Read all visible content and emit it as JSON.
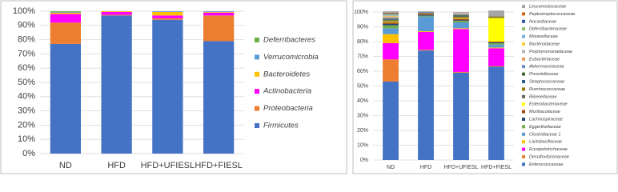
{
  "chart_data": [
    {
      "type": "stacked_bar",
      "categories": [
        "ND",
        "HFD",
        "HFD+UFIESL",
        "HFD+FIESL"
      ],
      "series": [
        {
          "name": "Firmicutes",
          "color": "#4472c4",
          "values": [
            77,
            97,
            94,
            79
          ]
        },
        {
          "name": "Proteobacteria",
          "color": "#ed7d31",
          "values": [
            15,
            0.5,
            1,
            18
          ]
        },
        {
          "name": "Actinobacteria",
          "color": "#ff00ff",
          "values": [
            6,
            2,
            2,
            2
          ]
        },
        {
          "name": "Bacteroidetes",
          "color": "#ffc000",
          "values": [
            1,
            0.5,
            2.5,
            0.5
          ]
        },
        {
          "name": "Verrucomicrobia",
          "color": "#5b9bd5",
          "values": [
            0.5,
            0,
            0.5,
            0.5
          ]
        },
        {
          "name": "Deferribacteres",
          "color": "#70ad47",
          "values": [
            0.5,
            0,
            0,
            0
          ]
        }
      ],
      "ylim": [
        0,
        100
      ],
      "yticks": [
        {
          "value": 0,
          "label": "0%"
        },
        {
          "value": 10,
          "label": "10%"
        },
        {
          "value": 20,
          "label": "20%"
        },
        {
          "value": 30,
          "label": "30%"
        },
        {
          "value": 40,
          "label": "40%"
        },
        {
          "value": 50,
          "label": "50%"
        },
        {
          "value": 60,
          "label": "60%"
        },
        {
          "value": 70,
          "label": "70%"
        },
        {
          "value": 80,
          "label": "80%"
        },
        {
          "value": 90,
          "label": "90%"
        },
        {
          "value": 100,
          "label": "100%"
        }
      ],
      "grid": true
    },
    {
      "type": "stacked_bar",
      "categories": [
        "ND",
        "HFD",
        "HFD+UFIESL",
        "HFD+FIESL"
      ],
      "series": [
        {
          "name": "Enterococcaceae",
          "color": "#4472c4",
          "values": [
            53,
            74,
            59,
            63
          ]
        },
        {
          "name": "Desulfovibrionaceae",
          "color": "#ed7d31",
          "values": [
            15,
            0.5,
            0.5,
            0.5
          ]
        },
        {
          "name": "Erysipelotrichaceae",
          "color": "#ff00ff",
          "values": [
            11,
            12,
            29,
            12
          ]
        },
        {
          "name": "Lactobacillaceae",
          "color": "#ffc000",
          "values": [
            6,
            0.5,
            0.5,
            0.5
          ]
        },
        {
          "name": "Clostridiaceae 1",
          "color": "#5b9bd5",
          "values": [
            4,
            10,
            4,
            2
          ]
        },
        {
          "name": "Eggerthellaceae",
          "color": "#70ad47",
          "values": [
            2,
            0.5,
            1,
            1
          ]
        },
        {
          "name": "Lachnospiraceae",
          "color": "#264478",
          "values": [
            1,
            0.5,
            0.5,
            0.5
          ]
        },
        {
          "name": "Muribaculaceae",
          "color": "#9e480e",
          "values": [
            1,
            0.5,
            1,
            0.5
          ]
        },
        {
          "name": "Enterobacteriaceae",
          "color": "#ffff00",
          "values": [
            0.5,
            0,
            0.5,
            16
          ]
        },
        {
          "name": "Rikenellaceae",
          "color": "#636363",
          "values": [
            0.5,
            0.5,
            0.5,
            0.5
          ]
        },
        {
          "name": "Ruminococcaceae",
          "color": "#997300",
          "values": [
            0.5,
            0.5,
            0.5,
            0.5
          ]
        },
        {
          "name": "Streptococcaceae",
          "color": "#255e91",
          "values": [
            0.5,
            0,
            0.5,
            0
          ]
        },
        {
          "name": "Prevotellaceae",
          "color": "#43682b",
          "values": [
            0.5,
            0,
            0.5,
            0
          ]
        },
        {
          "name": "Akkermansiaceae",
          "color": "#698ed0",
          "values": [
            0.5,
            0.5,
            0.5,
            0
          ]
        },
        {
          "name": "Eubacteriaceae",
          "color": "#f1975a",
          "values": [
            0.5,
            0,
            0.5,
            0
          ]
        },
        {
          "name": "Porphyromonadaceae",
          "color": "#b7b7b7",
          "values": [
            0.5,
            0,
            0.5,
            0
          ]
        },
        {
          "name": "Bacteroidaceae",
          "color": "#ffcd33",
          "values": [
            0.5,
            0,
            0,
            0
          ]
        },
        {
          "name": "Moraxellaceae",
          "color": "#7cafdd",
          "values": [
            0.5,
            0,
            0,
            0
          ]
        },
        {
          "name": "Deferribacteraceae",
          "color": "#8cc168",
          "values": [
            0.5,
            0,
            0,
            0
          ]
        },
        {
          "name": "Nocardiaceae",
          "color": "#335aa1",
          "values": [
            0.5,
            0,
            0,
            0
          ]
        },
        {
          "name": "Peptostreptococcaceae",
          "color": "#d26012",
          "values": [
            0.5,
            0,
            0,
            0
          ]
        },
        {
          "name": "Leuconostocaceae",
          "color": "#a5a5a5",
          "values": [
            1,
            0.5,
            0.5,
            4
          ]
        }
      ],
      "ylim": [
        0,
        100
      ],
      "yticks": [
        {
          "value": 0,
          "label": "0%"
        },
        {
          "value": 10,
          "label": "10%"
        },
        {
          "value": 20,
          "label": "20%"
        },
        {
          "value": 30,
          "label": "30%"
        },
        {
          "value": 40,
          "label": "40%"
        },
        {
          "value": 50,
          "label": "50%"
        },
        {
          "value": 60,
          "label": "60%"
        },
        {
          "value": 70,
          "label": "70%"
        },
        {
          "value": 80,
          "label": "80%"
        },
        {
          "value": 90,
          "label": "90%"
        },
        {
          "value": 100,
          "label": "100%"
        }
      ],
      "grid": true
    }
  ]
}
